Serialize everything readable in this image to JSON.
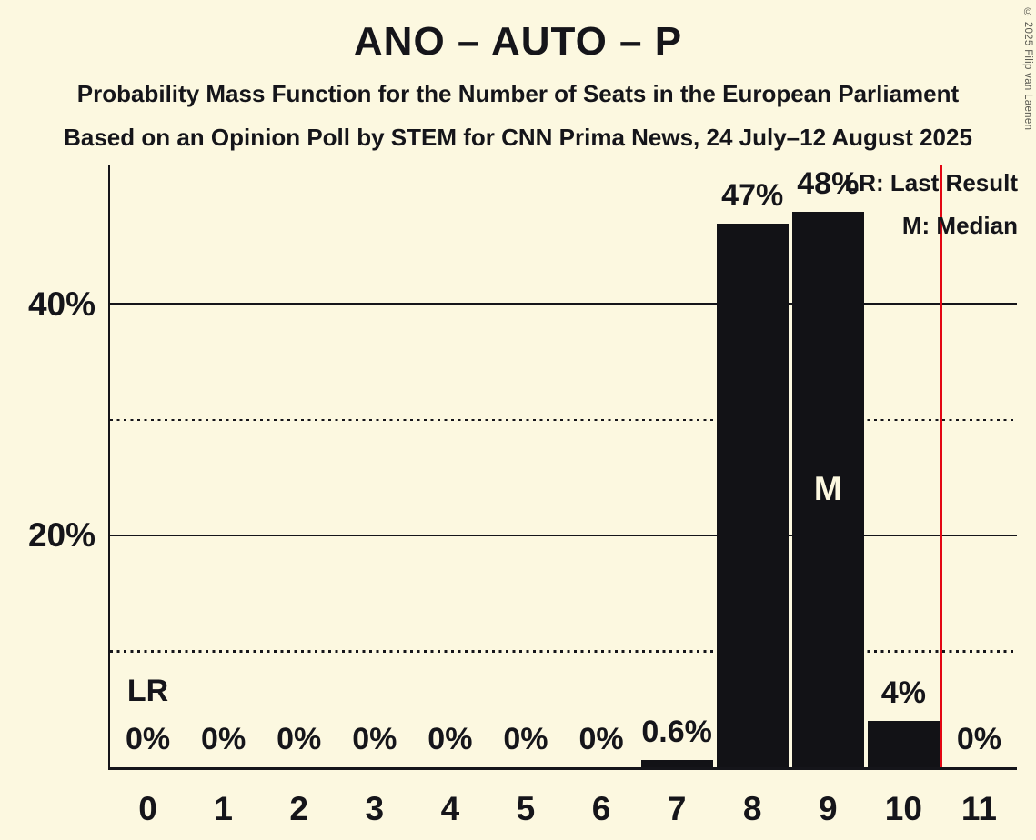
{
  "header": {
    "title": "ANO – AUTO – P",
    "subtitle1": "Probability Mass Function for the Number of Seats in the European Parliament",
    "subtitle2": "Based on an Opinion Poll by STEM for CNN Prima News, 24 July–12 August 2025"
  },
  "copyright": "© 2025 Filip van Laenen",
  "legend": {
    "last_result": "LR: Last Result",
    "median": "M: Median"
  },
  "chart_data": {
    "type": "bar",
    "title": "ANO – AUTO – P",
    "categories": [
      "0",
      "1",
      "2",
      "3",
      "4",
      "5",
      "6",
      "7",
      "8",
      "9",
      "10",
      "11"
    ],
    "values": [
      0,
      0,
      0,
      0,
      0,
      0,
      0,
      0.6,
      47,
      48,
      4,
      0
    ],
    "bar_labels": [
      "0%",
      "0%",
      "0%",
      "0%",
      "0%",
      "0%",
      "0%",
      "0.6%",
      "47%",
      "48%",
      "4%",
      "0%"
    ],
    "ylim": [
      0,
      52
    ],
    "yticks": [
      {
        "pct": 10,
        "label": "",
        "style": "dotted"
      },
      {
        "pct": 20,
        "label": "20%",
        "style": "solid"
      },
      {
        "pct": 30,
        "label": "",
        "style": "dotted"
      },
      {
        "pct": 40,
        "label": "40%",
        "style": "solid"
      }
    ],
    "grid": "horizontal",
    "legend_position": "top-right",
    "median": {
      "category": "9",
      "marker": "M"
    },
    "last_result": {
      "line_x": 10.5,
      "marker": "LR",
      "marker_category": "0"
    },
    "colors": {
      "background": "#FCF8E0",
      "bar": "#121216",
      "text": "#15151a",
      "median_marker": "#FCF8E0",
      "last_result_line": "#E30613",
      "copyright": "#5a5a52"
    }
  }
}
